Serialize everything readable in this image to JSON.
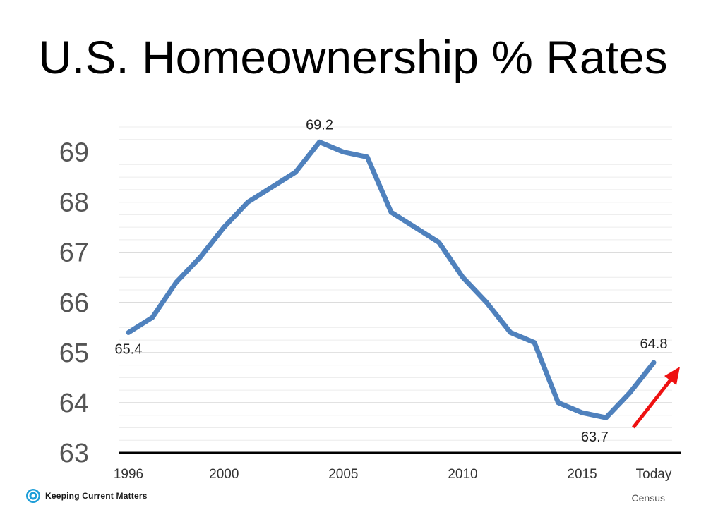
{
  "page": {
    "title": "U.S. Homeownership % Rates",
    "brand": "Keeping Current Matters",
    "source": "Census"
  },
  "chart_data": {
    "type": "line",
    "title": "U.S. Homeownership % Rates",
    "xlabel": "",
    "ylabel": "",
    "ylim": [
      63,
      69.5
    ],
    "yticks": [
      63,
      64,
      65,
      66,
      67,
      68,
      69
    ],
    "xticks": [
      "1996",
      "2000",
      "2005",
      "2010",
      "2015",
      "Today"
    ],
    "x": [
      1996,
      1997,
      1998,
      1999,
      2000,
      2001,
      2002,
      2003,
      2004,
      2005,
      2006,
      2007,
      2008,
      2009,
      2010,
      2011,
      2012,
      2013,
      2014,
      2015,
      2016,
      2017,
      2018
    ],
    "series": [
      {
        "values": [
          65.4,
          65.7,
          66.4,
          66.9,
          67.5,
          68.0,
          68.3,
          68.6,
          69.2,
          69.0,
          68.9,
          67.8,
          67.5,
          67.2,
          66.5,
          66.0,
          65.4,
          65.2,
          64.0,
          63.8,
          63.7,
          64.2,
          64.8
        ],
        "color": "#4f81bd"
      }
    ],
    "data_labels": [
      {
        "x": 1996,
        "value": 65.4,
        "text": "65.4"
      },
      {
        "x": 2004,
        "value": 69.2,
        "text": "69.2"
      },
      {
        "x": 2016,
        "value": 63.7,
        "text": "63.7"
      },
      {
        "x": 2018,
        "value": 64.8,
        "text": "64.8"
      }
    ],
    "grid": true,
    "legend": "none",
    "annotation": {
      "type": "arrow",
      "direction": "up-right",
      "color": "#ee1111"
    },
    "axis_color": "#000000",
    "grid_color": "#d9d9d9"
  }
}
